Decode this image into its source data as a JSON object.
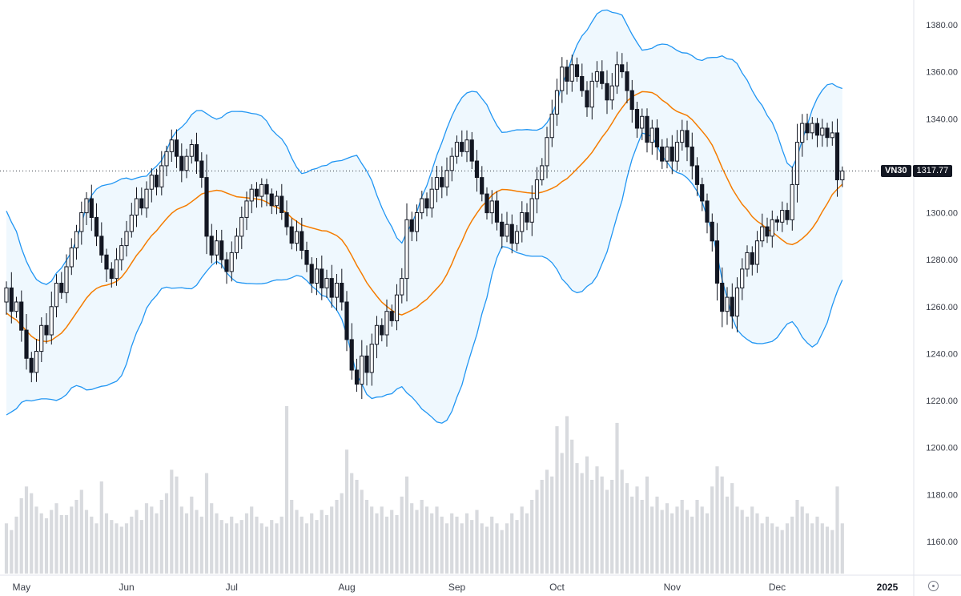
{
  "chart_data": {
    "type": "candlestick",
    "symbol": "VN30",
    "last_price": 1317.77,
    "x_axis": {
      "ticks": [
        {
          "label": "May",
          "i": 3
        },
        {
          "label": "Jun",
          "i": 24
        },
        {
          "label": "Jul",
          "i": 45
        },
        {
          "label": "Aug",
          "i": 68
        },
        {
          "label": "Sep",
          "i": 90
        },
        {
          "label": "Oct",
          "i": 110
        },
        {
          "label": "Nov",
          "i": 133
        },
        {
          "label": "Dec",
          "i": 154
        },
        {
          "label": "2025",
          "i": 176,
          "bold": true
        }
      ]
    },
    "y_axis": {
      "min": 1160,
      "max": 1380,
      "step": 20,
      "side": "right",
      "labels": [
        {
          "t": "1380.00",
          "v": 1380
        },
        {
          "t": "1360.00",
          "v": 1360
        },
        {
          "t": "1340.00",
          "v": 1340
        },
        {
          "t": "1300.00",
          "v": 1300
        },
        {
          "t": "1280.00",
          "v": 1280
        },
        {
          "t": "1260.00",
          "v": 1260
        },
        {
          "t": "1240.00",
          "v": 1240
        },
        {
          "t": "1220.00",
          "v": 1220
        },
        {
          "t": "1200.00",
          "v": 1200
        },
        {
          "t": "1180.00",
          "v": 1180
        },
        {
          "t": "1160.00",
          "v": 1160
        }
      ]
    },
    "indicators": {
      "bollinger_bands": {
        "length": 20,
        "stdev_mult": 2
      }
    },
    "series": {
      "pre_closes": [
        1292,
        1288,
        1295,
        1285,
        1278,
        1270,
        1262,
        1255,
        1248,
        1240,
        1235,
        1228,
        1222,
        1230,
        1238,
        1244,
        1250,
        1256,
        1262
      ],
      "closes": [
        1268,
        1258,
        1262,
        1250,
        1238,
        1232,
        1241,
        1252,
        1248,
        1260,
        1270,
        1266,
        1277,
        1285,
        1292,
        1300,
        1306,
        1298,
        1290,
        1282,
        1276,
        1272,
        1280,
        1286,
        1292,
        1299,
        1306,
        1302,
        1310,
        1316,
        1311,
        1320,
        1326,
        1331,
        1324,
        1318,
        1324,
        1329,
        1322,
        1315,
        1290,
        1282,
        1288,
        1280,
        1275,
        1283,
        1290,
        1298,
        1305,
        1310,
        1307,
        1312,
        1308,
        1303,
        1307,
        1300,
        1294,
        1287,
        1292,
        1284,
        1278,
        1270,
        1276,
        1268,
        1272,
        1264,
        1270,
        1262,
        1246,
        1233,
        1227,
        1239,
        1232,
        1244,
        1252,
        1248,
        1258,
        1254,
        1265,
        1272,
        1297,
        1292,
        1300,
        1306,
        1302,
        1310,
        1315,
        1311,
        1318,
        1324,
        1330,
        1326,
        1331,
        1322,
        1315,
        1308,
        1300,
        1305,
        1296,
        1290,
        1295,
        1287,
        1292,
        1300,
        1296,
        1306,
        1314,
        1320,
        1332,
        1342,
        1352,
        1362,
        1356,
        1363,
        1358,
        1352,
        1345,
        1356,
        1360,
        1355,
        1348,
        1354,
        1363,
        1360,
        1352,
        1344,
        1336,
        1341,
        1330,
        1336,
        1328,
        1322,
        1328,
        1322,
        1330,
        1335,
        1328,
        1320,
        1312,
        1305,
        1296,
        1288,
        1270,
        1258,
        1264,
        1256,
        1268,
        1276,
        1283,
        1278,
        1288,
        1294,
        1290,
        1297,
        1296,
        1301,
        1297,
        1312,
        1330,
        1338,
        1334,
        1338,
        1333,
        1336,
        1332,
        1334,
        1314,
        1317.77
      ],
      "volumes": [
        30,
        26,
        34,
        45,
        52,
        48,
        40,
        36,
        33,
        38,
        42,
        35,
        35,
        40,
        44,
        50,
        38,
        34,
        30,
        55,
        36,
        32,
        30,
        28,
        30,
        34,
        38,
        32,
        42,
        40,
        36,
        44,
        48,
        62,
        58,
        40,
        36,
        46,
        38,
        34,
        60,
        42,
        36,
        32,
        30,
        34,
        30,
        32,
        36,
        40,
        34,
        30,
        28,
        32,
        30,
        34,
        100,
        44,
        38,
        34,
        30,
        36,
        32,
        38,
        35,
        40,
        44,
        48,
        74,
        60,
        56,
        50,
        44,
        40,
        36,
        40,
        34,
        38,
        35,
        46,
        58,
        42,
        38,
        44,
        40,
        36,
        40,
        34,
        30,
        36,
        34,
        30,
        36,
        32,
        38,
        30,
        28,
        34,
        30,
        26,
        30,
        36,
        32,
        40,
        36,
        44,
        50,
        56,
        62,
        58,
        88,
        72,
        94,
        80,
        66,
        60,
        70,
        56,
        64,
        58,
        50,
        56,
        90,
        62,
        54,
        46,
        52,
        44,
        58,
        40,
        46,
        38,
        42,
        36,
        40,
        44,
        38,
        34,
        44,
        40,
        36,
        52,
        64,
        58,
        46,
        54,
        40,
        38,
        34,
        40,
        36,
        30,
        34,
        30,
        28,
        26,
        30,
        34,
        44,
        40,
        36,
        30,
        34,
        30,
        28,
        26,
        52,
        30
      ]
    },
    "colors": {
      "background": "#ffffff",
      "up_body": "#ffffff",
      "down_body": "#131722",
      "candle_border": "#131722",
      "wick": "#131722",
      "volume": "#d8dade",
      "bb_band_line": "#2196f3",
      "bb_fill": "rgba(33,150,243,0.07)",
      "bb_basis": "#f57c00",
      "axis_text": "#3a3e48",
      "axis_line": "#e0e3eb",
      "last_price_line": "#131722",
      "badge_bg": "#131722",
      "badge_text": "#ffffff"
    }
  },
  "price_badge": {
    "symbol": "VN30",
    "value": "1317.77"
  }
}
